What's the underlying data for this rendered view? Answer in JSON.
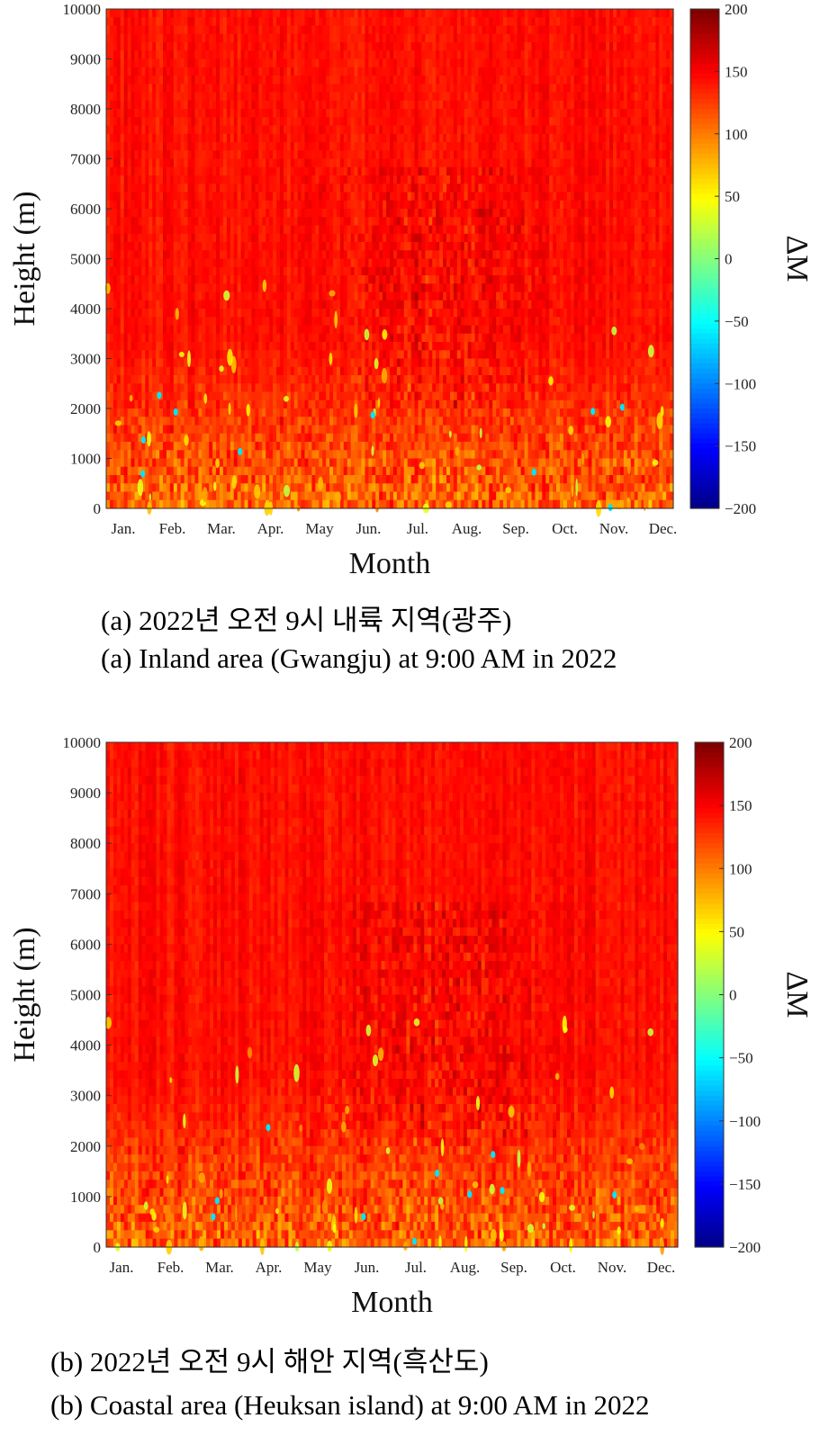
{
  "chart_data": [
    {
      "type": "heatmap",
      "ylabel": "Height (m)",
      "xlabel": "Month",
      "x_tick_labels": [
        "Jan.",
        "Feb.",
        "Mar.",
        "Apr.",
        "May",
        "Jun.",
        "Jul.",
        "Aug.",
        "Sep.",
        "Oct.",
        "Nov.",
        "Dec."
      ],
      "y_tick_labels": [
        "0",
        "1000",
        "2000",
        "3000",
        "4000",
        "5000",
        "6000",
        "7000",
        "8000",
        "9000",
        "10000"
      ],
      "ylim": [
        0,
        10000
      ],
      "colorbar": {
        "label": "ΔM",
        "range": [
          -200,
          200
        ],
        "tick_labels": [
          "200",
          "150",
          "100",
          "50",
          "0",
          "-50",
          "-100",
          "-150",
          "-200"
        ],
        "colormap": "jet"
      },
      "caption_kr": "(a) 2022년 오전 9시 내륙 지역(광주)",
      "caption_en": "(a) Inland area (Gwangju) at 9:00 AM in 2022"
    },
    {
      "type": "heatmap",
      "ylabel": "Height (m)",
      "xlabel": "Month",
      "x_tick_labels": [
        "Jan.",
        "Feb.",
        "Mar.",
        "Apr.",
        "May",
        "Jun.",
        "Jul.",
        "Aug.",
        "Sep.",
        "Oct.",
        "Nov.",
        "Dec."
      ],
      "y_tick_labels": [
        "0",
        "1000",
        "2000",
        "3000",
        "4000",
        "5000",
        "6000",
        "7000",
        "8000",
        "9000",
        "10000"
      ],
      "ylim": [
        0,
        10000
      ],
      "colorbar": {
        "label": "ΔM",
        "range": [
          -200,
          200
        ],
        "tick_labels": [
          "200",
          "150",
          "100",
          "50",
          "0",
          "-50",
          "-100",
          "-150",
          "-200"
        ],
        "colormap": "jet"
      },
      "caption_kr": "(b) 2022년 오전 9시 해안 지역(흑산도)",
      "caption_en": "(b) Coastal area (Heuksan island) at 9:00 AM in 2022"
    }
  ]
}
